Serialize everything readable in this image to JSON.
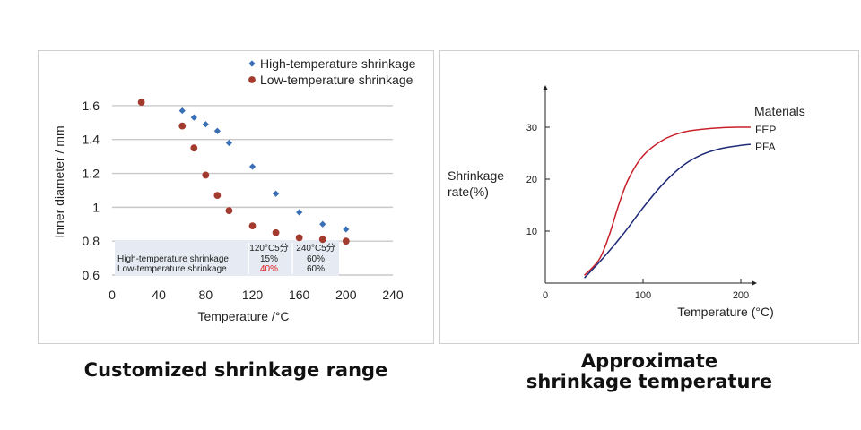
{
  "captions": {
    "left": "Customized shrinkage range",
    "right": "Approximate\nshrinkage temperature"
  },
  "chart_data": [
    {
      "type": "scatter",
      "xlabel": "Temperature /°C",
      "ylabel": "Inner diameter / mm",
      "xlim": [
        0,
        240
      ],
      "ylim": [
        0.6,
        1.7
      ],
      "xticks": [
        "0",
        "40",
        "80",
        "120",
        "160",
        "200",
        "240"
      ],
      "yticks": [
        "0.6",
        "0.8",
        "1",
        "1.2",
        "1.4",
        "1.6"
      ],
      "grid": true,
      "legend_position": "top-right",
      "series": [
        {
          "name": "High-temperature shrinkage",
          "marker": "diamond",
          "color": "#3a6fb5",
          "x": [
            60,
            70,
            80,
            90,
            100,
            120,
            140,
            160,
            180,
            200
          ],
          "y": [
            1.57,
            1.53,
            1.49,
            1.45,
            1.38,
            1.24,
            1.08,
            0.97,
            0.9,
            0.87
          ]
        },
        {
          "name": "Low-temperature shrinkage",
          "marker": "circle",
          "color": "#a23a2e",
          "x": [
            25,
            60,
            70,
            80,
            90,
            100,
            120,
            140,
            160,
            180,
            200
          ],
          "y": [
            1.62,
            1.48,
            1.35,
            1.19,
            1.07,
            0.98,
            0.89,
            0.85,
            0.82,
            0.81,
            0.8
          ]
        }
      ],
      "table": {
        "headers": [
          "120°C5分",
          "240°C5分"
        ],
        "rows": [
          {
            "label": "High-temperature shrinkage",
            "values": [
              "15%",
              "60%"
            ]
          },
          {
            "label": "Low-temperature shrinkage",
            "values": [
              "40%",
              "60%"
            ],
            "highlight_first": "#e02020"
          }
        ]
      }
    },
    {
      "type": "line",
      "xlabel": "Temperature (°C)",
      "ylabel": "Shrinkage\nrate(%)",
      "xlim": [
        0,
        220
      ],
      "ylim": [
        0,
        38
      ],
      "xticks": [
        "0",
        "100",
        "200"
      ],
      "yticks": [
        "10",
        "20",
        "30"
      ],
      "legend_title": "Materials",
      "series": [
        {
          "name": "FEP",
          "color": "#c8202a",
          "x": [
            40,
            55,
            65,
            75,
            85,
            100,
            120,
            140,
            160,
            180,
            200,
            210
          ],
          "y": [
            1.5,
            4.5,
            9,
            15,
            20,
            24.5,
            27.5,
            29,
            29.6,
            29.9,
            30,
            30
          ]
        },
        {
          "name": "PFA",
          "color": "#1f2a78",
          "x": [
            40,
            60,
            80,
            100,
            120,
            140,
            160,
            180,
            200,
            210
          ],
          "y": [
            1,
            5,
            9.5,
            14.5,
            19,
            22.5,
            24.7,
            25.9,
            26.5,
            26.7
          ]
        }
      ]
    }
  ]
}
